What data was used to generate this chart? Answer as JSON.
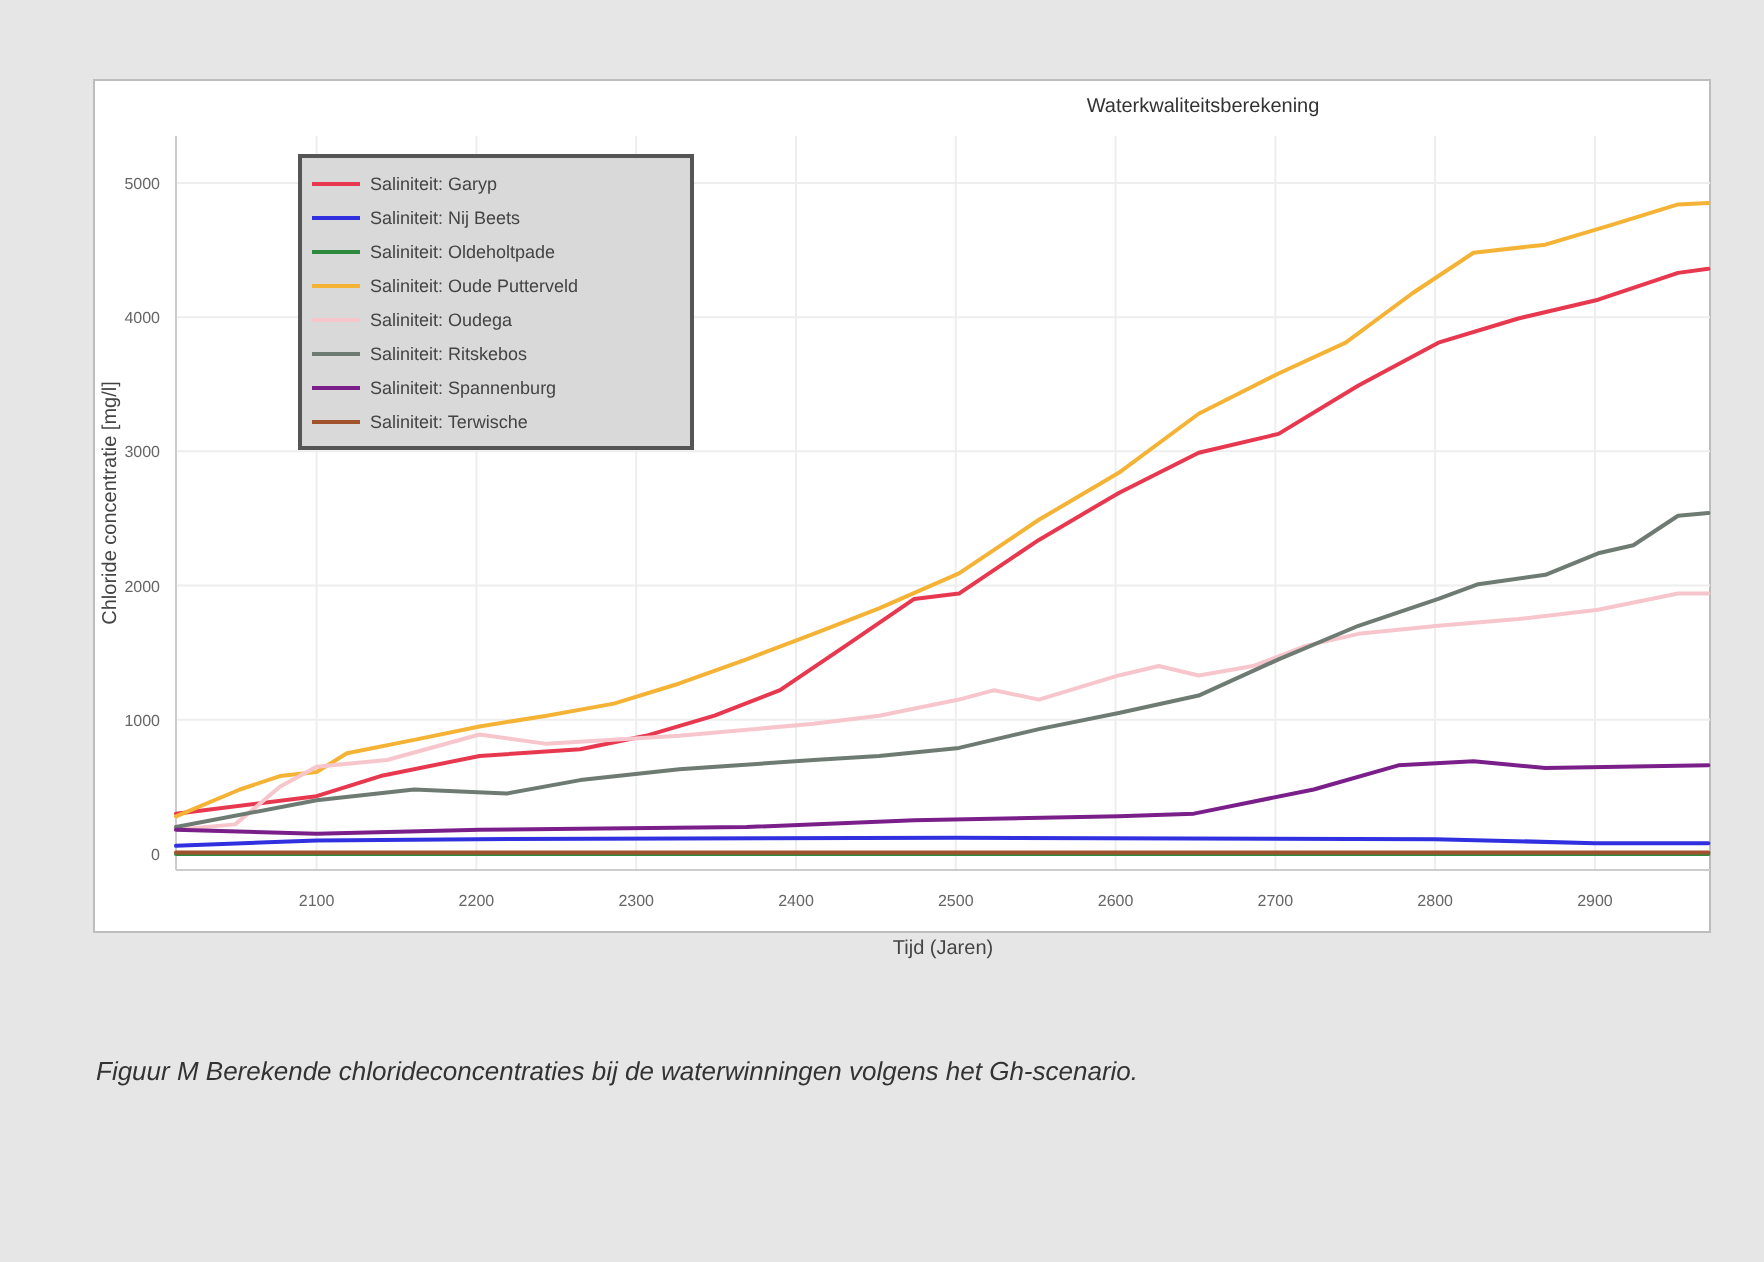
{
  "chart_data": {
    "type": "line",
    "title": "Waterkwaliteitsberekening",
    "xlabel": "Tijd (Jaren)",
    "ylabel": "Chloride concentratie [mg/l]",
    "annotations": [
      "Figuur M   Berekende chlorideconcentraties bij de waterwinningen volgens het Gh-scenario."
    ],
    "xlim": [
      2012,
      2972
    ],
    "ylim": [
      -120,
      5350
    ],
    "xticks": [
      2100,
      2200,
      2300,
      2400,
      2500,
      2600,
      2700,
      2800,
      2900
    ],
    "yticks": [
      0,
      1000,
      2000,
      3000,
      4000,
      5000
    ],
    "grid": true,
    "legend": "top left",
    "marker": "none",
    "line_style": "solid",
    "series": [
      {
        "name": "Saliniteit: Garyp",
        "color": "#e8384f",
        "x": [
          2012,
          2100,
          2140,
          2202,
          2265,
          2306,
          2349,
          2390,
          2431,
          2474,
          2502,
          2552,
          2602,
          2652,
          2702,
          2752,
          2802,
          2852,
          2902,
          2952,
          2971
        ],
        "values": [
          300,
          430,
          580,
          730,
          780,
          880,
          1030,
          1220,
          1550,
          1900,
          1940,
          2340,
          2690,
          2990,
          3130,
          3490,
          3810,
          3990,
          4130,
          4330,
          4360
        ]
      },
      {
        "name": "Saliniteit: Nij Beets",
        "color": "#3030e0",
        "x": [
          2012,
          2100,
          2200,
          2500,
          2800,
          2900,
          2971
        ],
        "values": [
          60,
          100,
          110,
          120,
          110,
          80,
          80
        ]
      },
      {
        "name": "Saliniteit: Oldeholtpade",
        "color": "#2e8b3e",
        "x": [
          2012,
          2500,
          2971
        ],
        "values": [
          0,
          0,
          0
        ]
      },
      {
        "name": "Saliniteit: Oude Putterveld",
        "color": "#f5b335",
        "x": [
          2012,
          2052,
          2077,
          2100,
          2119,
          2161,
          2202,
          2244,
          2286,
          2327,
          2369,
          2411,
          2452,
          2502,
          2552,
          2602,
          2652,
          2702,
          2744,
          2786,
          2824,
          2869,
          2911,
          2952,
          2971
        ],
        "values": [
          280,
          480,
          580,
          610,
          750,
          850,
          950,
          1030,
          1120,
          1270,
          1450,
          1640,
          1830,
          2090,
          2490,
          2840,
          3280,
          3580,
          3810,
          4180,
          4480,
          4540,
          4690,
          4840,
          4850
        ]
      },
      {
        "name": "Saliniteit: Oudega",
        "color": "#f7c6cc",
        "x": [
          2012,
          2049,
          2077,
          2100,
          2144,
          2202,
          2244,
          2327,
          2411,
          2452,
          2502,
          2524,
          2552,
          2602,
          2627,
          2652,
          2686,
          2719,
          2752,
          2802,
          2852,
          2902,
          2952,
          2971
        ],
        "values": [
          180,
          220,
          500,
          650,
          700,
          890,
          820,
          880,
          970,
          1030,
          1150,
          1220,
          1150,
          1330,
          1400,
          1330,
          1400,
          1550,
          1640,
          1700,
          1750,
          1820,
          1940,
          1940
        ]
      },
      {
        "name": "Saliniteit: Ritskebos",
        "color": "#6e7b73",
        "x": [
          2012,
          2100,
          2161,
          2219,
          2265,
          2327,
          2411,
          2452,
          2502,
          2552,
          2602,
          2652,
          2702,
          2752,
          2802,
          2827,
          2869,
          2902,
          2924,
          2952,
          2971
        ],
        "values": [
          200,
          400,
          480,
          450,
          550,
          630,
          700,
          730,
          790,
          930,
          1050,
          1180,
          1450,
          1700,
          1900,
          2010,
          2080,
          2240,
          2300,
          2520,
          2540
        ]
      },
      {
        "name": "Saliniteit: Spannenburg",
        "color": "#7a1f8a",
        "x": [
          2012,
          2100,
          2202,
          2369,
          2474,
          2602,
          2649,
          2724,
          2777,
          2824,
          2869,
          2971
        ],
        "values": [
          180,
          150,
          180,
          200,
          250,
          280,
          300,
          480,
          660,
          690,
          640,
          660
        ]
      },
      {
        "name": "Saliniteit: Terwische",
        "color": "#a0522d",
        "x": [
          2012,
          2500,
          2971
        ],
        "values": [
          10,
          10,
          10
        ]
      }
    ]
  }
}
